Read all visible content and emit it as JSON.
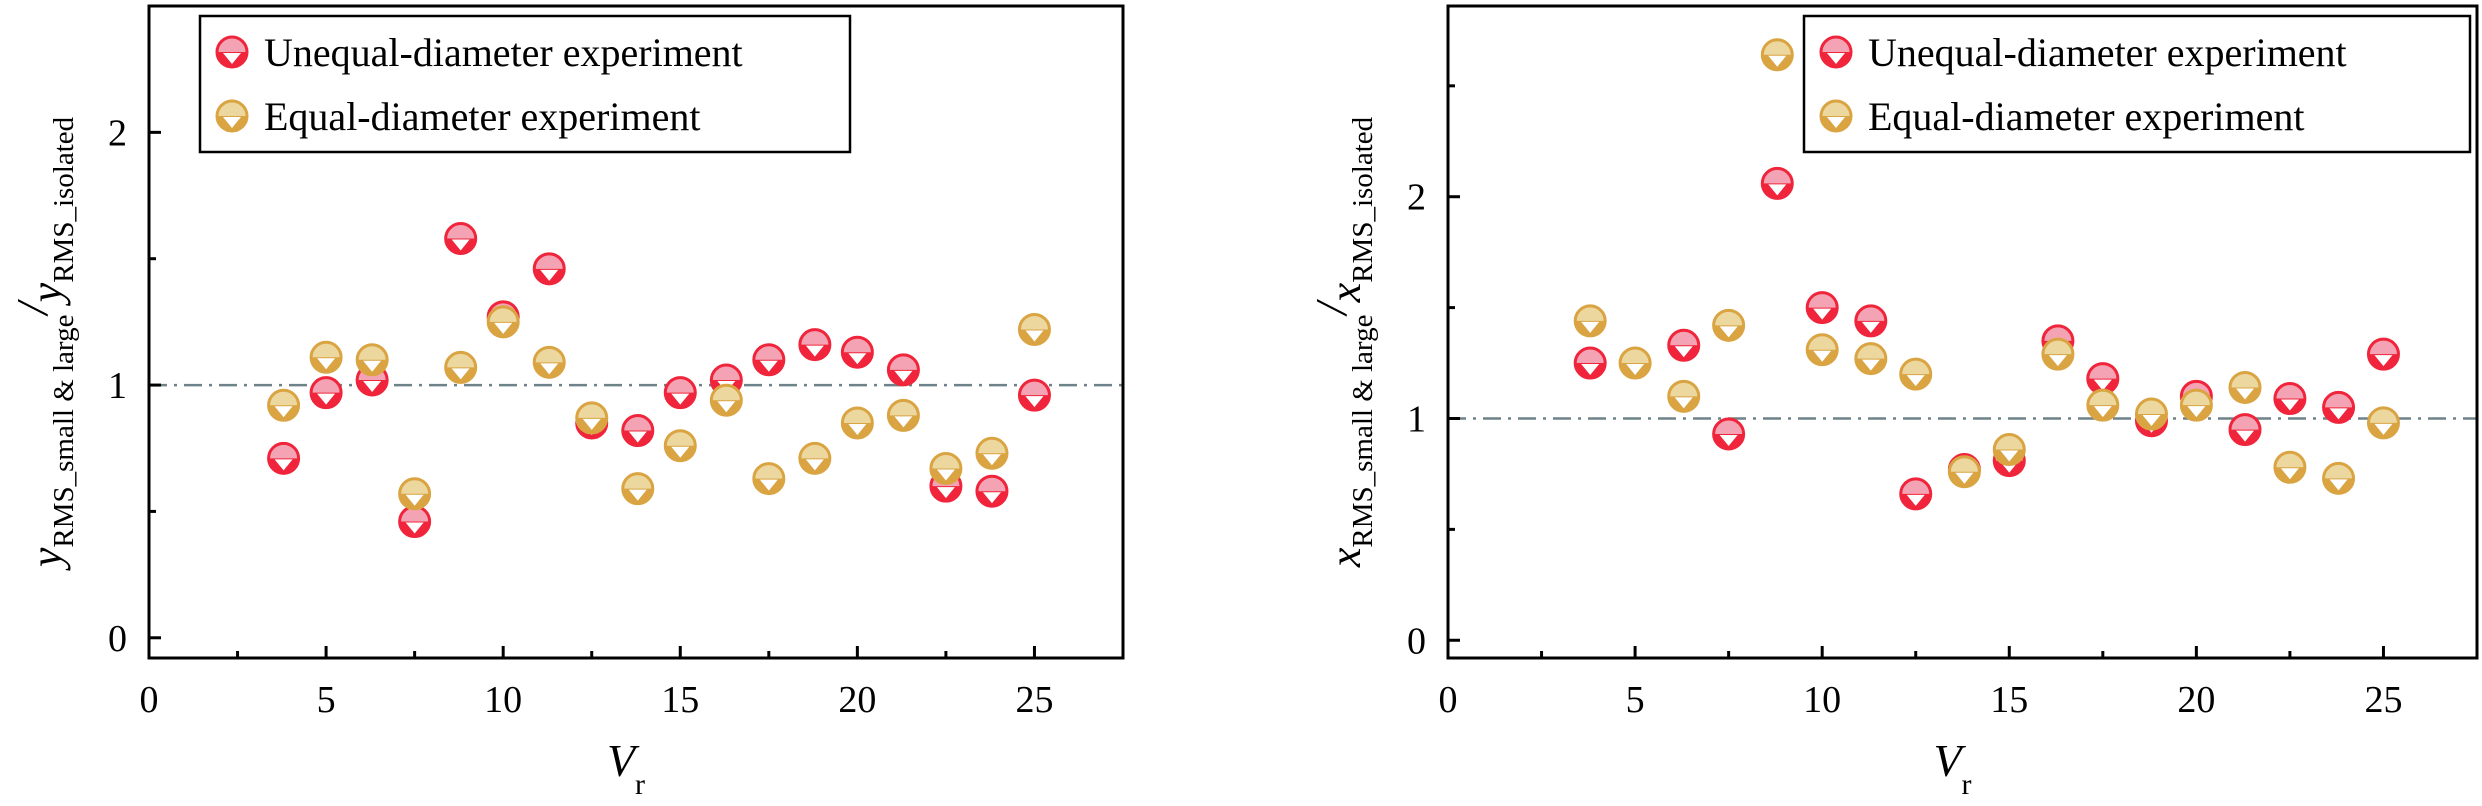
{
  "chart_data": [
    {
      "type": "scatter",
      "title": "",
      "xlabel_main": "V",
      "xlabel_sub": "r",
      "ylabel_var": "y",
      "ylabel_sub1": "RMS_small & large",
      "ylabel_sub2": "RMS_isolated",
      "xlim": [
        0,
        27.5
      ],
      "ylim": [
        -0.08,
        2.5
      ],
      "xticks": [
        0,
        5,
        10,
        15,
        20,
        25
      ],
      "xticks_minor": [
        2.5,
        7.5,
        12.5,
        17.5,
        22.5
      ],
      "yticks": [
        0,
        1,
        2
      ],
      "yticks_minor": [
        0.5,
        1.5
      ],
      "reference_line": 1,
      "legend_position": "top-left",
      "series": [
        {
          "name": "Unequal-diameter experiment",
          "color": "#f0243a",
          "light_color": "#f4a3b4",
          "x": [
            3.8,
            5.0,
            6.3,
            7.5,
            8.8,
            10.0,
            11.3,
            12.5,
            13.8,
            15.0,
            16.3,
            17.5,
            18.8,
            20.0,
            21.3,
            22.5,
            23.8,
            25.0
          ],
          "y": [
            0.71,
            0.97,
            1.02,
            0.46,
            1.58,
            1.27,
            1.46,
            0.85,
            0.82,
            0.97,
            1.02,
            1.1,
            1.16,
            1.13,
            1.06,
            0.6,
            0.58,
            0.96
          ]
        },
        {
          "name": "Equal-diameter experiment",
          "color": "#d9a441",
          "light_color": "#ecd79f",
          "x": [
            3.8,
            5.0,
            6.3,
            7.5,
            8.8,
            10.0,
            11.3,
            12.5,
            13.8,
            15.0,
            16.3,
            17.5,
            18.8,
            20.0,
            21.3,
            22.5,
            23.8,
            25.0
          ],
          "y": [
            0.92,
            1.11,
            1.1,
            0.57,
            1.07,
            1.25,
            1.09,
            0.87,
            0.59,
            0.76,
            0.94,
            0.63,
            0.71,
            0.85,
            0.88,
            0.67,
            0.73,
            1.22
          ]
        }
      ]
    },
    {
      "type": "scatter",
      "title": "",
      "xlabel_main": "V",
      "xlabel_sub": "r",
      "ylabel_var": "x",
      "ylabel_sub1": "RMS_small & large",
      "ylabel_sub2": "RMS_isolated",
      "xlim": [
        0,
        27.5
      ],
      "ylim": [
        -0.08,
        2.86
      ],
      "xticks": [
        0,
        5,
        10,
        15,
        20,
        25
      ],
      "xticks_minor": [
        2.5,
        7.5,
        12.5,
        17.5,
        22.5
      ],
      "yticks": [
        0,
        1,
        2
      ],
      "yticks_minor": [
        0.5,
        1.5,
        2.5
      ],
      "reference_line": 1,
      "legend_position": "top-right",
      "series": [
        {
          "name": "Unequal-diameter experiment",
          "color": "#f0243a",
          "light_color": "#f4a3b4",
          "x": [
            3.8,
            6.3,
            7.5,
            8.8,
            10.0,
            11.3,
            12.5,
            13.8,
            15.0,
            16.3,
            17.5,
            18.8,
            20.0,
            21.3,
            22.5,
            23.8,
            25.0
          ],
          "y": [
            1.25,
            1.33,
            0.93,
            2.06,
            1.5,
            1.44,
            0.66,
            0.77,
            0.81,
            1.35,
            1.18,
            0.99,
            1.1,
            0.95,
            1.09,
            1.05,
            1.29
          ]
        },
        {
          "name": "Equal-diameter experiment",
          "color": "#d9a441",
          "light_color": "#ecd79f",
          "x": [
            3.8,
            5.0,
            6.3,
            7.5,
            8.8,
            10.0,
            11.3,
            12.5,
            13.8,
            15.0,
            16.3,
            17.5,
            18.8,
            20.0,
            21.3,
            22.5,
            23.8,
            25.0
          ],
          "y": [
            1.44,
            1.25,
            1.1,
            1.42,
            2.64,
            1.31,
            1.27,
            1.2,
            0.76,
            0.86,
            1.29,
            1.06,
            1.02,
            1.06,
            1.14,
            0.78,
            0.73,
            0.98
          ]
        }
      ]
    }
  ]
}
